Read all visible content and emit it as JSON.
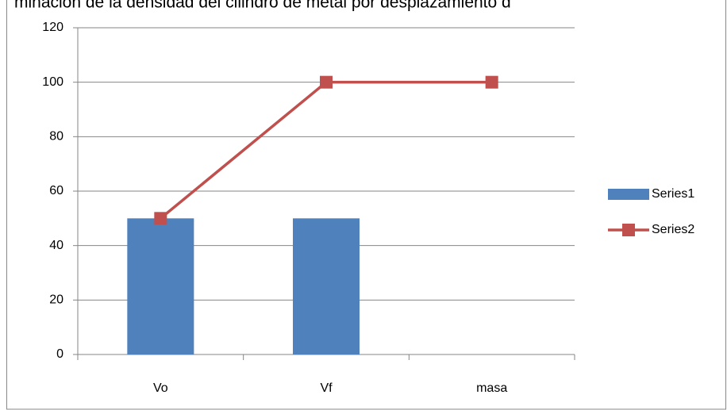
{
  "chart_data": {
    "type": "bar-line",
    "title": "minación de la densidad del cilindro de metal por desplazamiento d",
    "categories": [
      "Vo",
      "Vf",
      "masa"
    ],
    "series": [
      {
        "name": "Series1",
        "type": "bar",
        "color": "#4f81bd",
        "values": [
          50,
          50,
          null
        ]
      },
      {
        "name": "Series2",
        "type": "line",
        "color": "#c0504d",
        "values": [
          50,
          100,
          100
        ]
      }
    ],
    "ylim": [
      0,
      120
    ],
    "yticks": [
      0,
      20,
      40,
      60,
      80,
      100,
      120
    ],
    "grid": true,
    "legend": "right"
  }
}
